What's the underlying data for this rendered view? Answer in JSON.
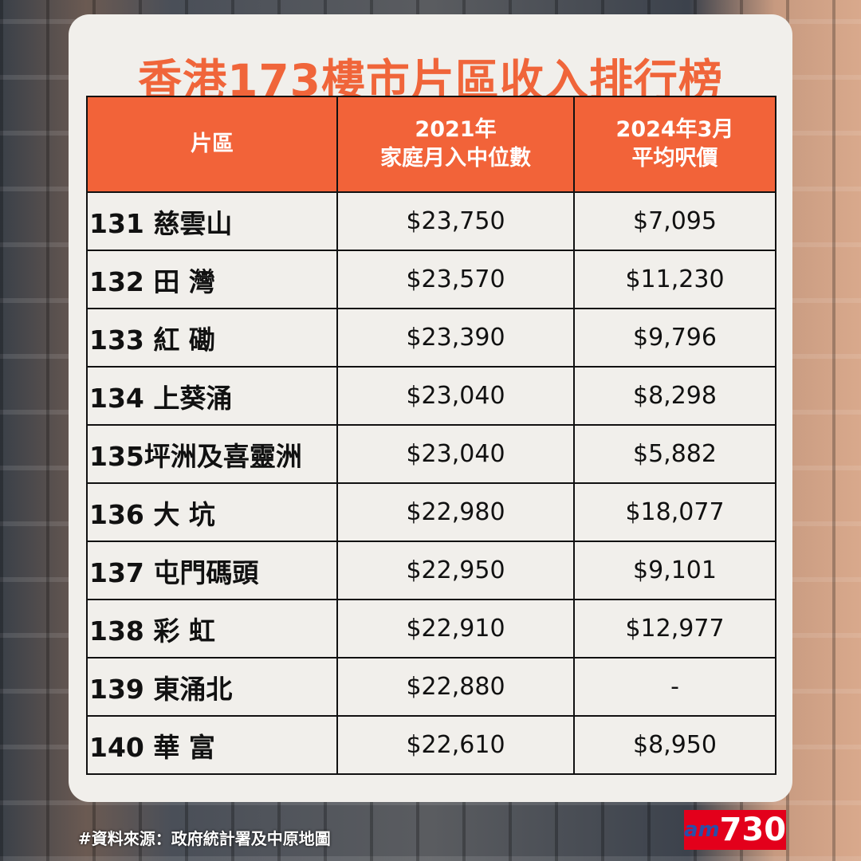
{
  "title": "香港173樓市片區收入排行榜",
  "table": {
    "headers": [
      {
        "line1": "片區",
        "line2": ""
      },
      {
        "line1": "2021年",
        "line2": "家庭月入中位數"
      },
      {
        "line1": "2024年3月",
        "line2": "平均呎價"
      }
    ],
    "rows": [
      {
        "district": "131 慈雲山",
        "income": "$23,750",
        "price": "$7,095"
      },
      {
        "district": "132 田 灣",
        "income": "$23,570",
        "price": "$11,230"
      },
      {
        "district": "133 紅 磡",
        "income": "$23,390",
        "price": "$9,796"
      },
      {
        "district": "134 上葵涌",
        "income": "$23,040",
        "price": "$8,298"
      },
      {
        "district": "135坪洲及喜靈洲",
        "income": "$23,040",
        "price": "$5,882"
      },
      {
        "district": "136 大 坑",
        "income": "$22,980",
        "price": "$18,077"
      },
      {
        "district": "137 屯門碼頭",
        "income": "$22,950",
        "price": "$9,101"
      },
      {
        "district": "138 彩 虹",
        "income": "$22,910",
        "price": "$12,977"
      },
      {
        "district": "139 東涌北",
        "income": "$22,880",
        "price": "-"
      },
      {
        "district": "140 華 富",
        "income": "$22,610",
        "price": "$8,950"
      }
    ]
  },
  "footer": "#資料來源：政府統計署及中原地圖",
  "logo": {
    "am": "am",
    "num": "730"
  },
  "colors": {
    "accent": "#f26339",
    "title": "#f0653a",
    "logo_bg": "#e3001b"
  }
}
